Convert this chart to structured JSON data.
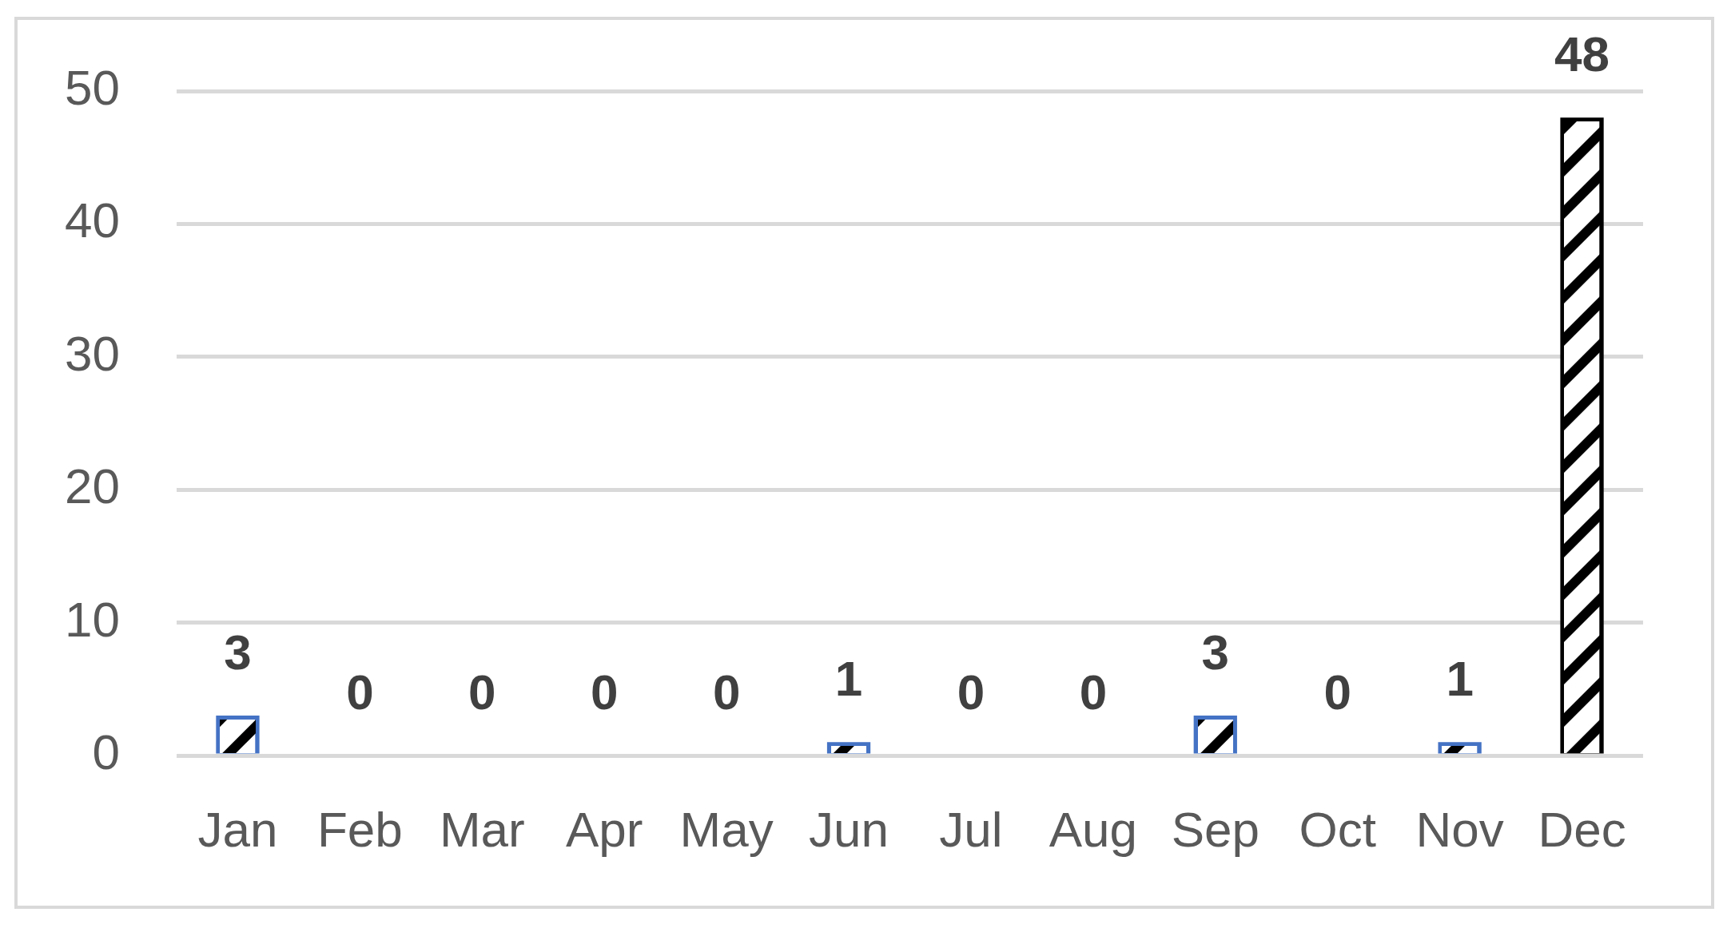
{
  "chart_data": {
    "type": "bar",
    "categories": [
      "Jan",
      "Feb",
      "Mar",
      "Apr",
      "May",
      "Jun",
      "Jul",
      "Aug",
      "Sep",
      "Oct",
      "Nov",
      "Dec"
    ],
    "values": [
      3,
      0,
      0,
      0,
      0,
      1,
      0,
      0,
      3,
      0,
      1,
      48
    ],
    "colors": [
      "#4472c4",
      "#4472c4",
      "#4472c4",
      "#4472c4",
      "#4472c4",
      "#4472c4",
      "#4472c4",
      "#4472c4",
      "#4472c4",
      "#4472c4",
      "#4472c4",
      "#000000"
    ],
    "ylim": [
      0,
      50
    ],
    "yticks": [
      0,
      10,
      20,
      30,
      40,
      50
    ],
    "grid": "y",
    "data_labels": true
  }
}
